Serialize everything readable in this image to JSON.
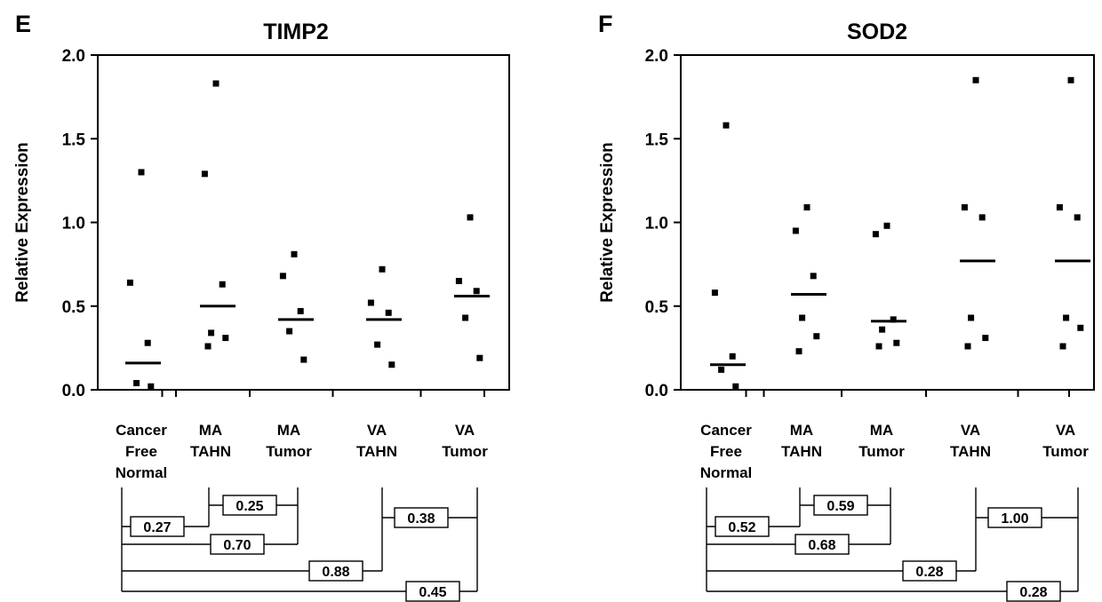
{
  "chart_data": [
    {
      "type": "scatter",
      "panel": "E",
      "title": "TIMP2",
      "ylabel": "Relative Expression",
      "ylim": [
        0,
        2.0
      ],
      "yticks": [
        "0.0",
        "0.5",
        "1.0",
        "1.5",
        "2.0"
      ],
      "categories": [
        [
          "Cancer",
          "Free",
          "Normal"
        ],
        [
          "MA",
          "TAHN"
        ],
        [
          "MA",
          "Tumor"
        ],
        [
          "VA",
          "TAHN"
        ],
        [
          "VA",
          "Tumor"
        ]
      ],
      "points": [
        [
          1.3,
          0.64,
          0.28,
          0.04,
          0.02
        ],
        [
          1.83,
          1.29,
          0.63,
          0.34,
          0.31,
          0.26
        ],
        [
          0.81,
          0.68,
          0.47,
          0.35,
          0.18
        ],
        [
          0.72,
          0.52,
          0.46,
          0.27,
          0.15
        ],
        [
          1.03,
          0.65,
          0.59,
          0.43,
          0.19
        ]
      ],
      "means": [
        0.16,
        0.5,
        0.42,
        0.42,
        0.56
      ],
      "comparisons": [
        {
          "label": "0.27",
          "from": 0,
          "to": 1
        },
        {
          "label": "0.25",
          "from": 1,
          "to": 2
        },
        {
          "label": "0.70",
          "from": 0,
          "to": 2
        },
        {
          "label": "0.38",
          "from": 3,
          "to": 4
        },
        {
          "label": "0.88",
          "from": 0,
          "to": 3
        },
        {
          "label": "0.45",
          "from": 0,
          "to": 4
        }
      ]
    },
    {
      "type": "scatter",
      "panel": "F",
      "title": "SOD2",
      "ylabel": "Relative Expression",
      "ylim": [
        0,
        2.0
      ],
      "yticks": [
        "0.0",
        "0.5",
        "1.0",
        "1.5",
        "2.0"
      ],
      "categories": [
        [
          "Cancer",
          "Free",
          "Normal"
        ],
        [
          "MA",
          "TAHN"
        ],
        [
          "MA",
          "Tumor"
        ],
        [
          "VA",
          "TAHN"
        ],
        [
          "VA",
          "Tumor"
        ]
      ],
      "points": [
        [
          1.58,
          0.58,
          0.2,
          0.12,
          0.02
        ],
        [
          1.09,
          0.95,
          0.68,
          0.43,
          0.32,
          0.23
        ],
        [
          0.98,
          0.93,
          0.42,
          0.36,
          0.28,
          0.26
        ],
        [
          1.85,
          1.09,
          1.03,
          0.43,
          0.31,
          0.26
        ],
        [
          1.85,
          1.09,
          1.03,
          0.43,
          0.37,
          0.26
        ]
      ],
      "means": [
        0.15,
        0.57,
        0.41,
        0.77,
        0.77
      ],
      "comparisons": [
        {
          "label": "0.52",
          "from": 0,
          "to": 1
        },
        {
          "label": "0.59",
          "from": 1,
          "to": 2
        },
        {
          "label": "0.68",
          "from": 0,
          "to": 2
        },
        {
          "label": "1.00",
          "from": 3,
          "to": 4
        },
        {
          "label": "0.28",
          "from": 0,
          "to": 3
        },
        {
          "label": "0.28",
          "from": 0,
          "to": 4
        }
      ]
    }
  ]
}
